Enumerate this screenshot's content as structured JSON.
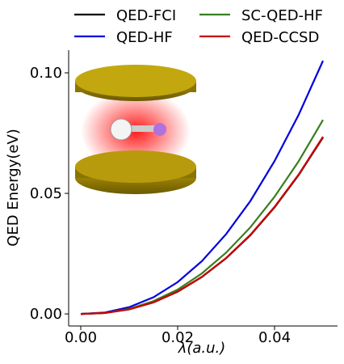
{
  "chart_data": {
    "type": "line",
    "x_label": "λ(a.u.)",
    "y_label": "QED Energy(eV)",
    "x": [
      0,
      0.005,
      0.01,
      0.015,
      0.02,
      0.025,
      0.03,
      0.035,
      0.04,
      0.045,
      0.05
    ],
    "series": [
      {
        "name": "QED-FCI",
        "color": "#000000",
        "values": [
          0,
          0.0004,
          0.0019,
          0.0048,
          0.0092,
          0.0153,
          0.0231,
          0.0326,
          0.0442,
          0.0577,
          0.0732
        ]
      },
      {
        "name": "QED-HF",
        "color": "#0000dd",
        "values": [
          0,
          0.0006,
          0.0028,
          0.0069,
          0.0132,
          0.0219,
          0.0331,
          0.0468,
          0.0634,
          0.0827,
          0.105
        ]
      },
      {
        "name": "SC-QED-HF",
        "color": "#3a7d1f",
        "values": [
          0,
          0.0004,
          0.0021,
          0.0053,
          0.0101,
          0.0168,
          0.0254,
          0.0359,
          0.0486,
          0.0634,
          0.0805
        ]
      },
      {
        "name": "QED-CCSD",
        "color": "#cc0000",
        "values": [
          0,
          0.0004,
          0.0019,
          0.0048,
          0.0093,
          0.0154,
          0.0232,
          0.0328,
          0.0444,
          0.0579,
          0.0735
        ]
      }
    ],
    "xlim": [
      -0.0025,
      0.053
    ],
    "ylim": [
      -0.005,
      0.1094
    ],
    "xticks": [
      {
        "value": 0,
        "label": "0.00"
      },
      {
        "value": 0.02,
        "label": "0.02"
      },
      {
        "value": 0.04,
        "label": "0.04"
      }
    ],
    "yticks": [
      {
        "value": 0,
        "label": "0.00"
      },
      {
        "value": 0.05,
        "label": "0.05"
      },
      {
        "value": 0.1,
        "label": "0.10"
      }
    ]
  }
}
